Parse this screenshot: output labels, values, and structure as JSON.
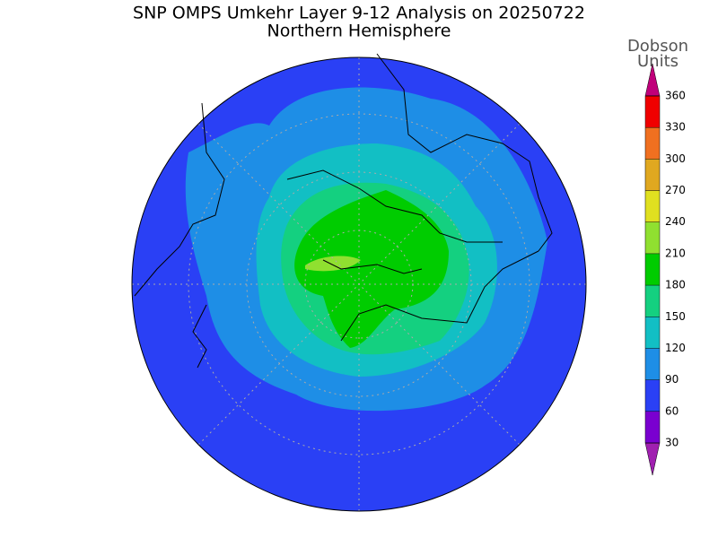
{
  "title": "SNP OMPS Umkehr Layer 9-12 Analysis on 20250722",
  "subtitle": "Northern Hemisphere",
  "colorbar": {
    "title": [
      "Dobson",
      "Units"
    ],
    "ticks": [
      30,
      60,
      90,
      120,
      150,
      180,
      210,
      240,
      270,
      300,
      330,
      360
    ],
    "colors": [
      "#a020b0",
      "#7a00d0",
      "#2a40f5",
      "#1e8ee6",
      "#12bfc4",
      "#14d080",
      "#00cc00",
      "#90e030",
      "#e0e020",
      "#e0a820",
      "#f07020",
      "#f00000",
      "#c0007a"
    ]
  }
}
